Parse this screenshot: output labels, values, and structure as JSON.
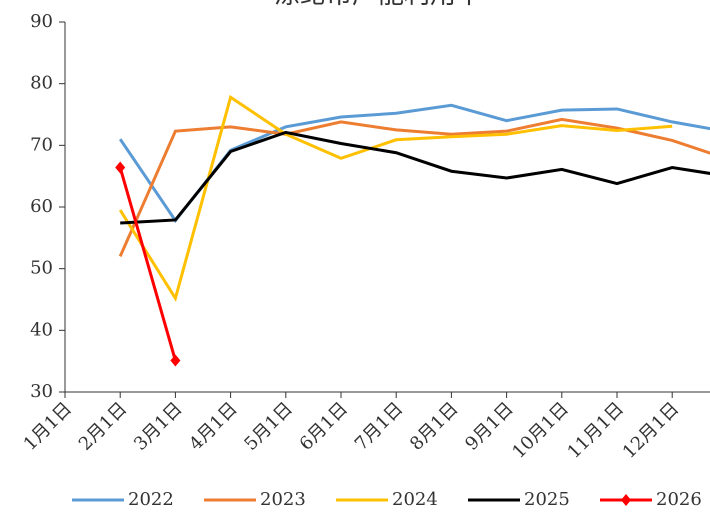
{
  "chart_data": {
    "type": "line",
    "title": "涤纶帘产能利用率",
    "categories": [
      "1月1日",
      "2月1日",
      "3月1日",
      "4月1日",
      "5月1日",
      "6月1日",
      "7月1日",
      "8月1日",
      "9月1日",
      "10月1日",
      "11月1日",
      "12月1日",
      null
    ],
    "ylim": [
      30,
      90
    ],
    "yticks": [
      30,
      40,
      50,
      60,
      70,
      80,
      90
    ],
    "series": [
      {
        "name": "2022",
        "color": "#5b9bd5",
        "values": [
          null,
          71,
          57.8,
          69.2,
          73,
          74.6,
          75.2,
          76.5,
          74,
          75.7,
          75.9,
          73.8,
          72.2
        ]
      },
      {
        "name": "2023",
        "color": "#ed7d31",
        "values": [
          null,
          52,
          72.3,
          73,
          71.8,
          73.8,
          72.5,
          71.8,
          72.3,
          74.2,
          72.8,
          70.8,
          67.8
        ]
      },
      {
        "name": "2024",
        "color": "#ffc000",
        "values": [
          null,
          59.5,
          45.2,
          77.8,
          71.8,
          67.9,
          70.9,
          71.4,
          71.8,
          73.2,
          72.4,
          73.1,
          null
        ]
      },
      {
        "name": "2025",
        "color": "#000000",
        "values": [
          null,
          57.4,
          57.9,
          69,
          72.1,
          70.3,
          68.8,
          65.8,
          64.7,
          66.1,
          63.8,
          66.4,
          65
        ]
      },
      {
        "name": "2026",
        "color": "#ff0000",
        "marker": "diamond",
        "values": [
          null,
          66.4,
          35.1,
          null,
          null,
          null,
          null,
          null,
          null,
          null,
          null,
          null,
          null
        ]
      }
    ]
  }
}
